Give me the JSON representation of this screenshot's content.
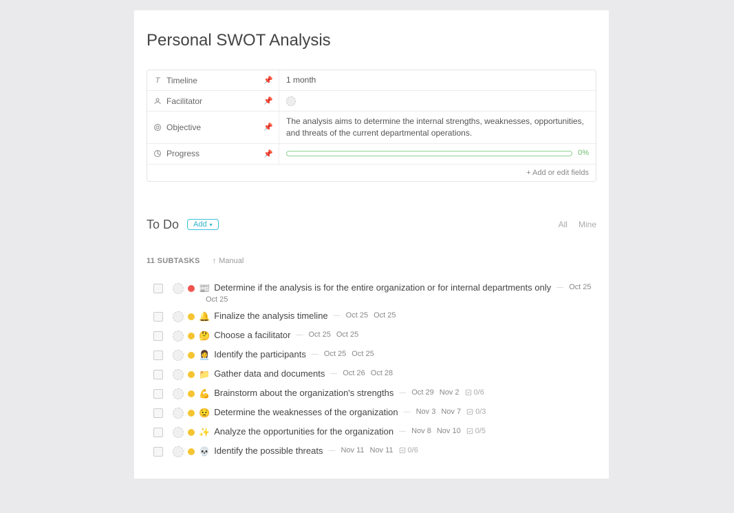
{
  "page": {
    "title": "Personal SWOT Analysis"
  },
  "fields": {
    "timeline": {
      "label": "Timeline",
      "value": "1 month"
    },
    "facilitator": {
      "label": "Facilitator",
      "value": ""
    },
    "objective": {
      "label": "Objective",
      "value": "The analysis aims to determine the internal strengths, weaknesses, opportunities, and threats of the current departmental operations."
    },
    "progress": {
      "label": "Progress",
      "percent": "0%"
    },
    "add_edit": "+ Add or edit fields"
  },
  "todo": {
    "title": "To Do",
    "add_label": "Add",
    "filters": {
      "all": "All",
      "mine": "Mine"
    }
  },
  "subtasks_meta": {
    "count_label": "11 SUBTASKS",
    "sort_label": "Manual"
  },
  "priority_colors": {
    "red": "#f0544f",
    "yellow": "#f5c431"
  },
  "tasks": [
    {
      "title": "Determine if the analysis is for the entire organization or for internal departments only",
      "emoji": "📰",
      "priority": "red",
      "date1": "Oct 25",
      "date2": "Oct 25",
      "wrap_date_below": true
    },
    {
      "title": "Finalize the analysis timeline",
      "emoji": "🔔",
      "priority": "yellow",
      "date1": "Oct 25",
      "date2": "Oct 25"
    },
    {
      "title": "Choose a facilitator",
      "emoji": "🤔",
      "priority": "yellow",
      "date1": "Oct 25",
      "date2": "Oct 25"
    },
    {
      "title": "Identify the participants",
      "emoji": "👩‍💼",
      "priority": "yellow",
      "date1": "Oct 25",
      "date2": "Oct 25"
    },
    {
      "title": "Gather data and documents",
      "emoji": "📁",
      "priority": "yellow",
      "date1": "Oct 26",
      "date2": "Oct 28"
    },
    {
      "title": "Brainstorm about the organization's strengths",
      "emoji": "💪",
      "priority": "yellow",
      "date1": "Oct 29",
      "date2": "Nov 2",
      "sub": "0/6"
    },
    {
      "title": "Determine the weaknesses of the organization",
      "emoji": "😟",
      "priority": "yellow",
      "date1": "Nov 3",
      "date2": "Nov 7",
      "sub": "0/3"
    },
    {
      "title": "Analyze the opportunities for the organization",
      "emoji": "✨",
      "priority": "yellow",
      "date1": "Nov 8",
      "date2": "Nov 10",
      "sub": "0/5"
    },
    {
      "title": "Identify the possible threats",
      "emoji": "💀",
      "priority": "yellow",
      "date1": "Nov 11",
      "date2": "Nov 11",
      "sub": "0/6"
    }
  ]
}
